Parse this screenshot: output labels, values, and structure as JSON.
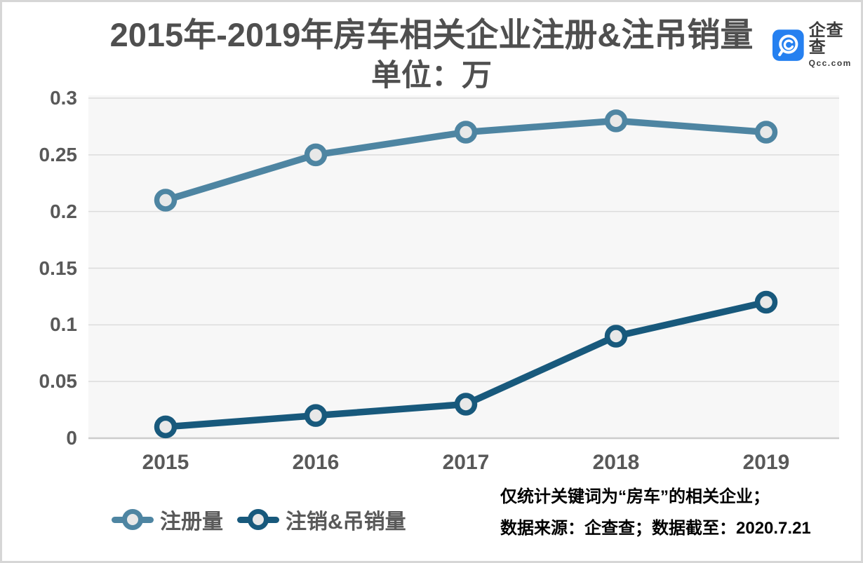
{
  "page": {
    "title_line1": "2015年-2019年房车相关企业注册&注吊销量",
    "title_line2": "单位：万"
  },
  "logo": {
    "name": "企查查",
    "domain": "Qcc.com",
    "brand_color": "#2580f0"
  },
  "chart_data": {
    "type": "line",
    "title": "2015年-2019年房车相关企业注册&注吊销量",
    "subtitle": "单位：万",
    "categories": [
      "2015",
      "2016",
      "2017",
      "2018",
      "2019"
    ],
    "series": [
      {
        "name": "注册量",
        "color": "#4e85a2",
        "values": [
          0.21,
          0.25,
          0.27,
          0.28,
          0.27
        ]
      },
      {
        "name": "注销&吊销量",
        "color": "#18597c",
        "values": [
          0.01,
          0.02,
          0.03,
          0.09,
          0.12
        ]
      }
    ],
    "ylim": [
      0,
      0.3
    ],
    "yticks": [
      0,
      0.05,
      0.1,
      0.15,
      0.2,
      0.25,
      0.3
    ],
    "ytick_labels": [
      "0",
      "0.05",
      "0.1",
      "0.15",
      "0.2",
      "0.25",
      "0.3"
    ],
    "grid": true,
    "legend_position": "bottom-left",
    "plot_bg": "#f7f7f7",
    "grid_color": "#dcdcdc",
    "axis_color": "#cccccc",
    "marker_fill": "#e8e8e8"
  },
  "footnote": {
    "line1": "仅统计关键词为“房车”的相关企业；",
    "line2": "数据来源：企查查；数据截至：2020.7.21"
  }
}
